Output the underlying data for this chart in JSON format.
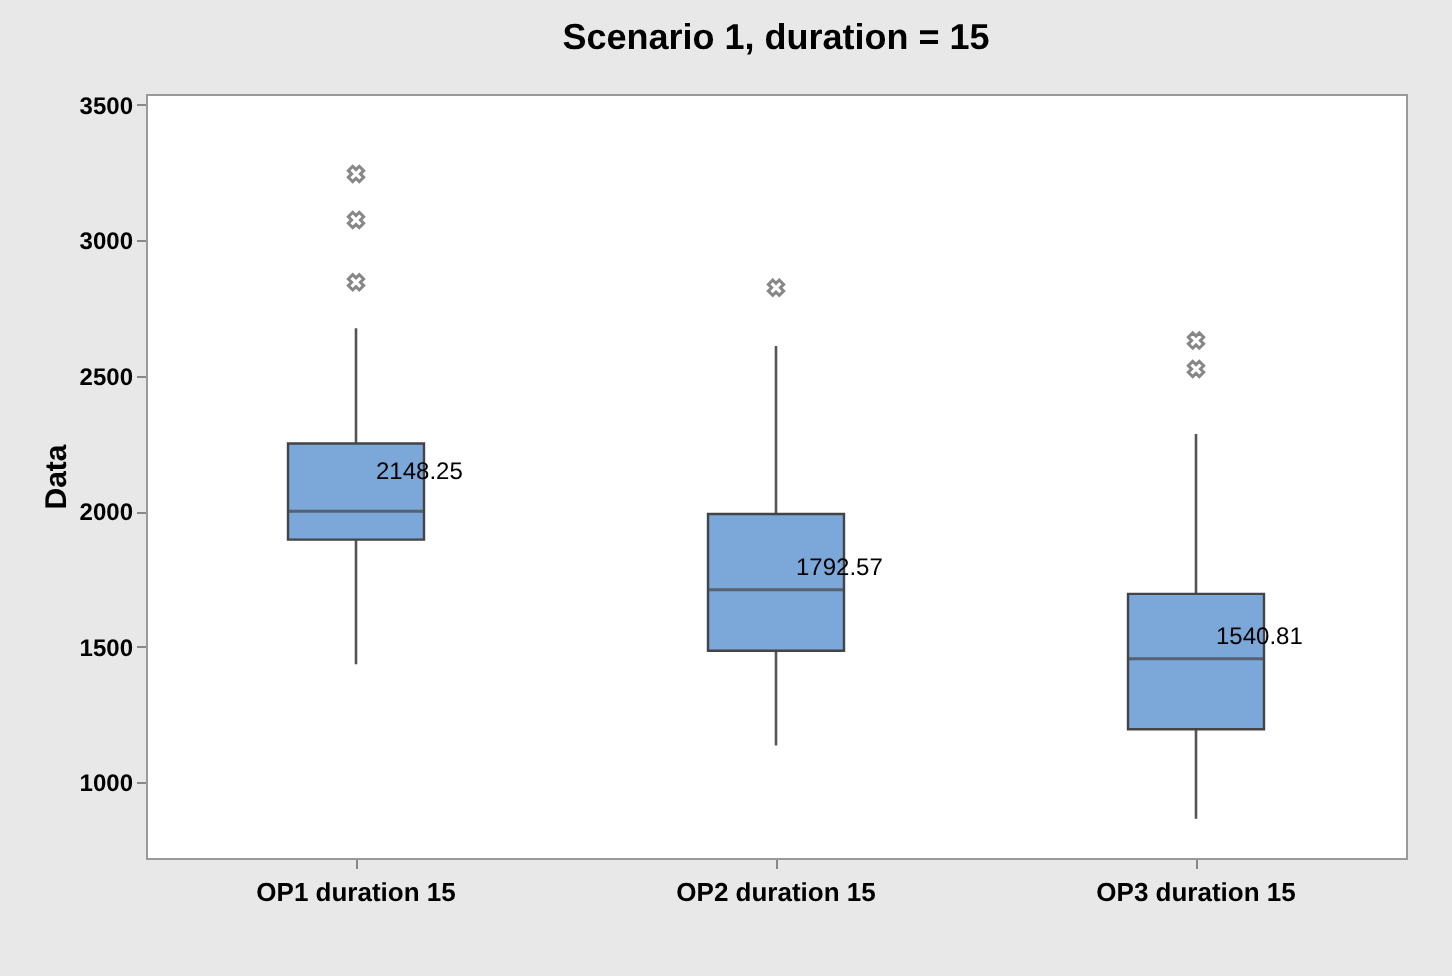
{
  "chart_data": {
    "type": "box",
    "title": "Scenario 1, duration = 15",
    "ylabel": "Data",
    "categories": [
      "OP1 duration 15",
      "OP2 duration 15",
      "OP3 duration 15"
    ],
    "color": "#7ba7d9",
    "boxes": [
      {
        "low": 1435,
        "q1": 1895,
        "median": 2000,
        "q3": 2250,
        "high": 2675,
        "outliers": [
          2845,
          3075,
          3245
        ]
      },
      {
        "low": 1135,
        "q1": 1485,
        "median": 1710,
        "q3": 1990,
        "high": 2610,
        "outliers": [
          2825
        ]
      },
      {
        "low": 865,
        "q1": 1195,
        "median": 1455,
        "q3": 1695,
        "high": 2285,
        "outliers": [
          2525,
          2630
        ]
      }
    ],
    "annotations": [
      {
        "text": "2148.25",
        "x": "OP1 duration 15",
        "y": 2148.25
      },
      {
        "text": "1792.57",
        "x": "OP2 duration 15",
        "y": 1792.57
      },
      {
        "text": "1540.81",
        "x": "OP3 duration 15",
        "y": 1540.81
      }
    ],
    "ylim": [
      720,
      3540
    ],
    "yticks": [
      1000,
      1500,
      2000,
      2500,
      3000,
      3500
    ],
    "grid": false,
    "marker": "cross"
  }
}
